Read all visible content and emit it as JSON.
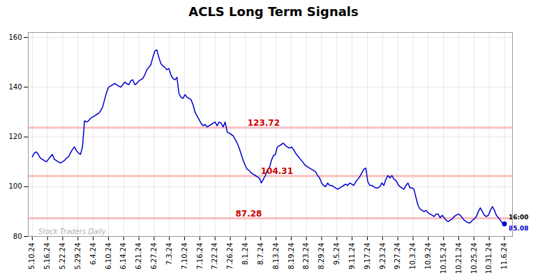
{
  "chart_data": {
    "type": "line",
    "title": "ACLS Long Term Signals",
    "color": "#0000cc",
    "grid": true,
    "x": [
      0,
      1,
      2,
      3,
      4,
      5,
      6,
      7,
      8,
      9,
      10,
      11,
      12,
      13,
      14,
      15,
      16,
      17,
      18,
      19,
      20,
      21,
      22,
      23,
      24,
      25,
      26,
      27,
      28,
      29,
      30,
      31,
      32,
      33,
      34,
      35,
      36,
      37,
      38,
      39,
      40,
      41,
      42,
      43,
      44,
      45,
      46,
      47,
      48,
      49,
      50,
      51,
      52,
      53,
      54,
      55,
      56,
      57,
      58,
      59,
      60,
      61,
      62,
      63,
      64,
      65,
      66,
      67,
      68,
      69,
      70,
      71,
      72,
      73,
      74,
      75,
      76,
      77,
      78,
      79,
      80,
      81,
      82,
      83,
      84,
      85,
      86,
      87,
      88,
      89,
      90,
      91,
      92,
      93,
      94,
      95,
      96,
      97,
      98,
      99,
      100,
      101,
      102,
      103,
      104,
      105,
      106,
      107,
      108,
      109,
      110,
      111,
      112,
      113,
      114,
      115,
      116,
      117,
      118,
      119,
      120,
      121,
      122,
      123,
      124,
      125,
      126,
      127,
      128,
      129,
      130,
      131,
      132,
      133,
      134,
      135,
      136,
      137,
      138,
      139,
      140,
      141,
      142,
      143,
      144,
      145,
      146,
      147,
      148,
      149,
      150,
      151,
      152,
      153,
      154,
      155,
      156,
      157,
      158,
      159,
      160,
      161,
      162,
      163,
      164,
      165,
      166,
      167,
      168,
      169,
      170,
      171,
      172,
      173,
      174,
      175,
      176,
      177,
      178,
      179,
      180,
      181,
      182,
      183,
      184,
      185,
      186,
      187,
      188,
      189,
      190,
      191,
      192,
      193,
      194,
      195,
      196,
      197,
      198,
      199,
      200,
      201,
      202,
      203,
      204,
      205,
      206,
      207,
      208,
      209,
      210,
      211,
      212,
      213,
      214,
      215,
      216,
      217,
      218,
      219,
      220,
      221,
      222,
      223,
      224,
      225,
      226,
      227,
      228,
      229,
      230,
      231,
      232,
      233,
      234,
      235
    ],
    "values": [
      112.0,
      113.5,
      114.0,
      113.0,
      111.5,
      111.0,
      110.5,
      110.0,
      111.0,
      112.0,
      113.0,
      111.0,
      110.5,
      110.0,
      109.5,
      110.0,
      110.5,
      111.5,
      112.0,
      113.5,
      115.0,
      116.0,
      114.5,
      113.5,
      113.0,
      116.0,
      126.5,
      126.0,
      126.5,
      127.5,
      128.0,
      128.5,
      129.0,
      129.5,
      130.5,
      132.0,
      135.0,
      138.0,
      140.0,
      140.5,
      141.0,
      141.5,
      141.0,
      140.5,
      140.0,
      141.0,
      142.0,
      141.5,
      141.0,
      142.5,
      143.0,
      141.0,
      141.5,
      142.5,
      143.0,
      143.5,
      145.0,
      147.0,
      148.0,
      149.0,
      152.0,
      154.5,
      155.0,
      152.0,
      149.5,
      148.5,
      148.0,
      147.0,
      147.5,
      145.0,
      143.5,
      143.0,
      144.0,
      137.5,
      136.0,
      135.5,
      137.0,
      136.0,
      135.5,
      135.0,
      133.0,
      130.0,
      128.5,
      127.0,
      125.5,
      124.5,
      125.0,
      124.0,
      124.5,
      125.0,
      125.5,
      126.0,
      124.5,
      126.0,
      125.5,
      124.0,
      126.0,
      122.0,
      121.5,
      121.0,
      120.5,
      119.0,
      117.5,
      115.5,
      113.0,
      110.5,
      108.5,
      107.0,
      106.5,
      105.5,
      105.0,
      104.5,
      104.0,
      103.5,
      101.5,
      103.0,
      104.5,
      106.5,
      107.5,
      110.5,
      112.5,
      113.0,
      116.0,
      116.5,
      117.0,
      117.5,
      116.5,
      116.0,
      115.5,
      116.0,
      115.0,
      113.5,
      112.5,
      111.5,
      110.5,
      109.5,
      108.5,
      108.0,
      107.5,
      107.0,
      106.5,
      106.0,
      104.5,
      103.5,
      101.5,
      100.5,
      100.0,
      101.5,
      100.5,
      100.5,
      100.0,
      99.5,
      99.0,
      99.5,
      100.0,
      100.5,
      101.0,
      100.5,
      101.5,
      101.0,
      100.5,
      102.0,
      103.0,
      104.0,
      105.5,
      107.0,
      107.5,
      102.0,
      100.5,
      100.5,
      100.0,
      99.5,
      99.5,
      100.0,
      101.5,
      100.5,
      103.0,
      104.5,
      103.5,
      104.5,
      103.0,
      102.5,
      101.0,
      100.0,
      99.5,
      99.0,
      100.5,
      101.5,
      99.5,
      99.5,
      99.0,
      95.5,
      92.5,
      91.0,
      90.5,
      90.0,
      90.5,
      89.5,
      89.0,
      88.5,
      88.0,
      89.0,
      89.0,
      87.5,
      88.5,
      87.5,
      86.5,
      86.0,
      86.5,
      87.0,
      88.0,
      88.5,
      89.0,
      88.5,
      87.5,
      86.5,
      86.0,
      85.5,
      85.5,
      86.5,
      87.0,
      88.0,
      90.0,
      91.5,
      90.0,
      88.5,
      88.0,
      88.5,
      90.5,
      92.0,
      90.5,
      88.5,
      87.5,
      86.5,
      85.5,
      85.08
    ],
    "xlim": [
      -2,
      239
    ],
    "xticks": [
      {
        "value": 0,
        "label": "5.10.24"
      },
      {
        "value": 7.5806451613,
        "label": "5.16.24"
      },
      {
        "value": 15.1612903226,
        "label": "5.22.24"
      },
      {
        "value": 22.7419354839,
        "label": "5.29.24"
      },
      {
        "value": 30.3225806452,
        "label": "6.4.24"
      },
      {
        "value": 37.9032258065,
        "label": "6.10.24"
      },
      {
        "value": 45.4838709677,
        "label": "6.14.24"
      },
      {
        "value": 53.064516129,
        "label": "6.21.24"
      },
      {
        "value": 60.6451612903,
        "label": "6.27.24"
      },
      {
        "value": 68.2258064516,
        "label": "7.3.24"
      },
      {
        "value": 75.8064516129,
        "label": "7.10.24"
      },
      {
        "value": 83.3870967742,
        "label": "7.16.24"
      },
      {
        "value": 90.9677419355,
        "label": "7.22.24"
      },
      {
        "value": 98.5483870968,
        "label": "7.26.24"
      },
      {
        "value": 106.1290322581,
        "label": "8.1.24"
      },
      {
        "value": 113.7096774194,
        "label": "8.7.24"
      },
      {
        "value": 121.2903225806,
        "label": "8.13.24"
      },
      {
        "value": 128.8709677419,
        "label": "8.19.24"
      },
      {
        "value": 136.4516129032,
        "label": "8.23.24"
      },
      {
        "value": 144.0322580645,
        "label": "8.29.24"
      },
      {
        "value": 151.6129032258,
        "label": "9.5.24"
      },
      {
        "value": 159.1935483871,
        "label": "9.11.24"
      },
      {
        "value": 166.7741935484,
        "label": "9.17.24"
      },
      {
        "value": 174.3548387097,
        "label": "9.23.24"
      },
      {
        "value": 181.935483871,
        "label": "9.27.24"
      },
      {
        "value": 189.5161290323,
        "label": "10.3.24"
      },
      {
        "value": 197.0967741935,
        "label": "10.9.24"
      },
      {
        "value": 204.6774193548,
        "label": "10.15.24"
      },
      {
        "value": 212.2580645161,
        "label": "10.21.24"
      },
      {
        "value": 219.8387096774,
        "label": "10.25.24"
      },
      {
        "value": 227.4193548387,
        "label": "10.31.24"
      },
      {
        "value": 235,
        "label": "11.6.24"
      }
    ],
    "ylim": [
      80,
      162
    ],
    "yticks": [
      80,
      100,
      120,
      140,
      160
    ],
    "annotations": [
      {
        "text": "123.72",
        "y": 123.72,
        "color": "#cc0000"
      },
      {
        "text": "104.31",
        "y": 104.31,
        "color": "#cc0000"
      },
      {
        "text": "87.28",
        "y": 87.28,
        "color": "#cc0000"
      }
    ],
    "end_point": {
      "x": 235,
      "y": 85.08,
      "label": "16:00"
    },
    "watermark": "Stock Traders Daily"
  }
}
